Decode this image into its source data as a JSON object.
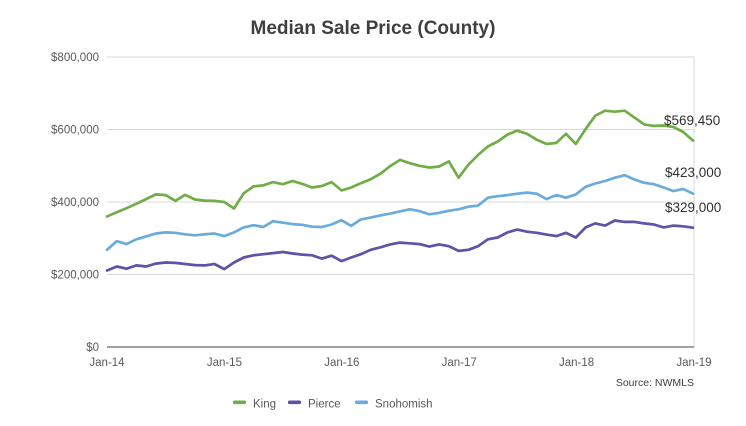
{
  "chart": {
    "title": "Median Sale Price (County)",
    "source_note": "Source: NWMLS",
    "y_tick_labels": [
      "$800,000",
      "$600,000",
      "$400,000",
      "$200,000",
      "$0"
    ],
    "x_tick_labels": [
      "Jan-14",
      "Jan-15",
      "Jan-16",
      "Jan-17",
      "Jan-18",
      "Jan-19"
    ],
    "end_labels": {
      "king": "$569,450",
      "snohomish": "$423,000",
      "pierce": "$329,000"
    }
  },
  "chart_data": {
    "type": "line",
    "title": "Median Sale Price (County)",
    "source": "Source: NWMLS",
    "ylim": [
      0,
      800000
    ],
    "y_ticks": [
      0,
      200000,
      400000,
      600000,
      800000
    ],
    "grid": "horizontal",
    "legend_position": "bottom",
    "x_frequency": "monthly",
    "x": [
      "Jan-14",
      "Feb-14",
      "Mar-14",
      "Apr-14",
      "May-14",
      "Jun-14",
      "Jul-14",
      "Aug-14",
      "Sep-14",
      "Oct-14",
      "Nov-14",
      "Dec-14",
      "Jan-15",
      "Feb-15",
      "Mar-15",
      "Apr-15",
      "May-15",
      "Jun-15",
      "Jul-15",
      "Aug-15",
      "Sep-15",
      "Oct-15",
      "Nov-15",
      "Dec-15",
      "Jan-16",
      "Feb-16",
      "Mar-16",
      "Apr-16",
      "May-16",
      "Jun-16",
      "Jul-16",
      "Aug-16",
      "Sep-16",
      "Oct-16",
      "Nov-16",
      "Dec-16",
      "Jan-17",
      "Feb-17",
      "Mar-17",
      "Apr-17",
      "May-17",
      "Jun-17",
      "Jul-17",
      "Aug-17",
      "Sep-17",
      "Oct-17",
      "Nov-17",
      "Dec-17",
      "Jan-18",
      "Feb-18",
      "Mar-18",
      "Apr-18",
      "May-18",
      "Jun-18",
      "Jul-18",
      "Aug-18",
      "Sep-18",
      "Oct-18",
      "Nov-18",
      "Dec-18",
      "Jan-19"
    ],
    "series": [
      {
        "name": "King",
        "color": "#70ad47",
        "end_value": 569450,
        "values": [
          360000,
          372000,
          383000,
          395000,
          408000,
          421000,
          419000,
          403000,
          420000,
          407000,
          404000,
          403000,
          400000,
          382000,
          424000,
          443000,
          446000,
          455000,
          449000,
          458000,
          450000,
          440000,
          444000,
          455000,
          432000,
          440000,
          452000,
          463000,
          478000,
          499000,
          516000,
          507000,
          500000,
          495000,
          498000,
          512000,
          467000,
          503000,
          530000,
          553000,
          567000,
          586000,
          597000,
          588000,
          572000,
          560000,
          563000,
          588000,
          560000,
          601000,
          638000,
          652000,
          649000,
          652000,
          633000,
          614000,
          610000,
          611000,
          607000,
          593000,
          569450
        ]
      },
      {
        "name": "Pierce",
        "color": "#5f52a8",
        "end_value": 329000,
        "values": [
          211000,
          222000,
          216000,
          225000,
          222000,
          230000,
          233000,
          232000,
          229000,
          226000,
          225000,
          229000,
          215000,
          233000,
          247000,
          253000,
          256000,
          259000,
          262000,
          258000,
          255000,
          253000,
          244000,
          252000,
          237000,
          247000,
          256000,
          268000,
          275000,
          283000,
          288000,
          286000,
          284000,
          277000,
          283000,
          278000,
          265000,
          268000,
          278000,
          297000,
          302000,
          316000,
          324000,
          318000,
          315000,
          310000,
          306000,
          315000,
          302000,
          330000,
          341000,
          335000,
          349000,
          345000,
          345000,
          341000,
          338000,
          330000,
          335000,
          333000,
          329000
        ]
      },
      {
        "name": "Snohomish",
        "color": "#6aabde",
        "end_value": 423000,
        "values": [
          268000,
          292000,
          284000,
          297000,
          305000,
          313000,
          316000,
          315000,
          311000,
          308000,
          311000,
          313000,
          306000,
          316000,
          330000,
          336000,
          331000,
          347000,
          343000,
          339000,
          337000,
          332000,
          331000,
          338000,
          350000,
          334000,
          352000,
          357000,
          363000,
          368000,
          374000,
          380000,
          375000,
          366000,
          370000,
          376000,
          380000,
          387000,
          390000,
          412000,
          416000,
          419000,
          423000,
          426000,
          423000,
          408000,
          419000,
          412000,
          421000,
          442000,
          451000,
          458000,
          467000,
          474000,
          462000,
          453000,
          449000,
          440000,
          430000,
          436000,
          423000
        ]
      }
    ]
  }
}
